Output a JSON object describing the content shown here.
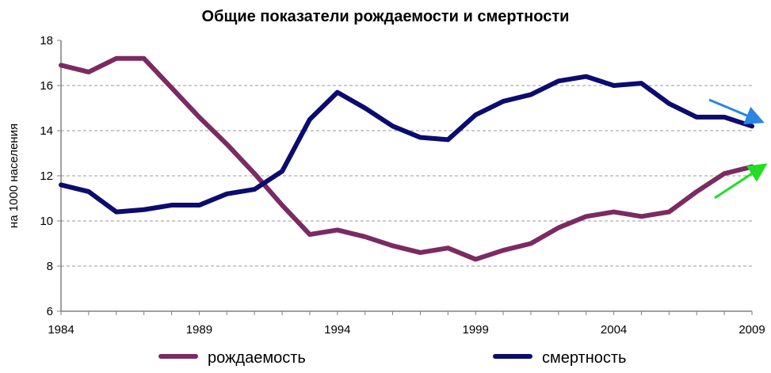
{
  "chart_data": {
    "type": "line",
    "title": "Общие показатели рождаемости и смертности",
    "xlabel": "",
    "ylabel": "на 1000 населения",
    "x": [
      1984,
      1985,
      1986,
      1987,
      1988,
      1989,
      1990,
      1991,
      1992,
      1993,
      1994,
      1995,
      1996,
      1997,
      1998,
      1999,
      2000,
      2001,
      2002,
      2003,
      2004,
      2005,
      2006,
      2007,
      2008,
      2009
    ],
    "xticks": [
      "1984",
      "1989",
      "1994",
      "1999",
      "2004",
      "2009"
    ],
    "yticks": [
      "6",
      "8",
      "10",
      "12",
      "14",
      "16",
      "18"
    ],
    "xlim": [
      1984,
      2009
    ],
    "ylim": [
      6,
      18
    ],
    "grid": "horizontal dashed",
    "legend": "bottom",
    "series": [
      {
        "name": "рождаемость",
        "color": "#7b2a63",
        "values": [
          16.9,
          16.6,
          17.2,
          17.2,
          15.9,
          14.6,
          13.4,
          12.1,
          10.7,
          9.4,
          9.6,
          9.3,
          8.9,
          8.6,
          8.8,
          8.3,
          8.7,
          9.0,
          9.7,
          10.2,
          10.4,
          10.2,
          10.4,
          11.3,
          12.1,
          12.4
        ]
      },
      {
        "name": "смертность",
        "color": "#0b0c6e",
        "values": [
          11.6,
          11.3,
          10.4,
          10.5,
          10.7,
          10.7,
          11.2,
          11.4,
          12.2,
          14.5,
          15.7,
          15.0,
          14.2,
          13.7,
          13.6,
          14.7,
          15.3,
          15.6,
          16.2,
          16.4,
          16.0,
          16.1,
          15.2,
          14.6,
          14.6,
          14.2
        ]
      }
    ],
    "annotations": [
      {
        "type": "arrow",
        "color": "#2a86e0",
        "direction": "down-right"
      },
      {
        "type": "arrow",
        "color": "#22dd22",
        "direction": "up-right"
      }
    ]
  }
}
